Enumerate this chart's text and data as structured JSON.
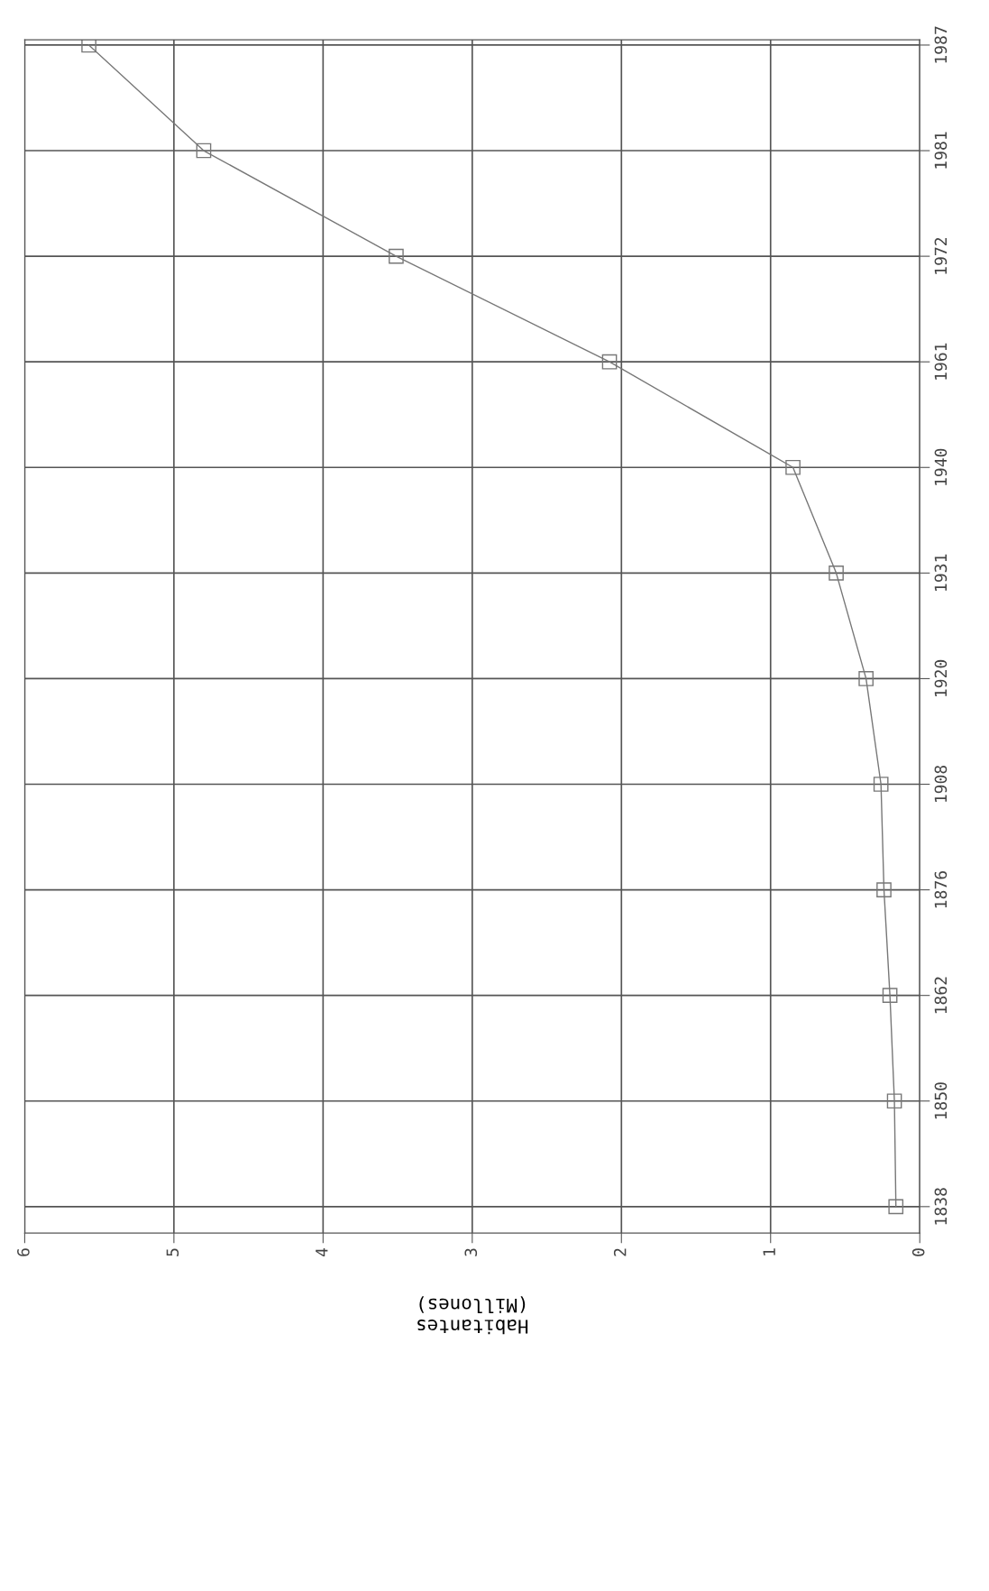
{
  "chart_data": {
    "type": "line",
    "orientation": "horizontal",
    "categories": [
      "1987",
      "1981",
      "1972",
      "1961",
      "1940",
      "1931",
      "1920",
      "1908",
      "1876",
      "1862",
      "1850",
      "1838"
    ],
    "series": [
      {
        "color": "#777777",
        "values": [
          5.57,
          4.8,
          3.51,
          2.08,
          0.85,
          0.56,
          0.36,
          0.26,
          0.24,
          0.2,
          0.17,
          0.16
        ]
      }
    ],
    "xlabel": "Habitantes\n(Millones)",
    "xlim": [
      6,
      0
    ],
    "xticks": [
      0,
      1,
      2,
      3,
      4,
      5,
      6
    ],
    "grid": true,
    "marker": "square",
    "line_style": "solid"
  }
}
